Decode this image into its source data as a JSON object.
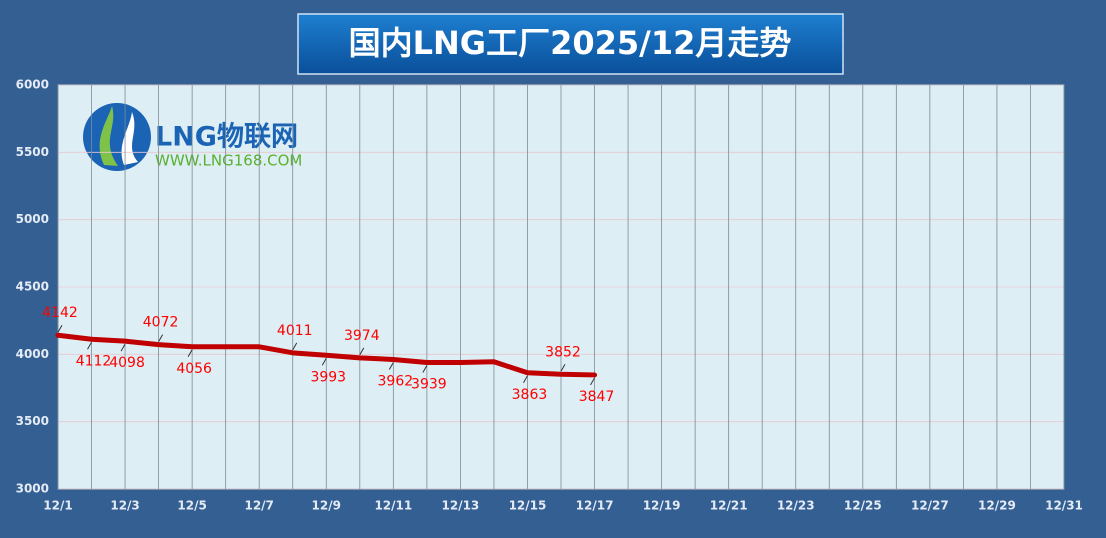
{
  "chart_data": {
    "type": "line",
    "title": "国内LNG工厂2025/12月走势",
    "logo": {
      "name": "LNG物联网",
      "url": "WWW.LNG168.COM"
    },
    "categories": [
      "12/1",
      null,
      "12/3",
      null,
      "12/5",
      null,
      "12/7",
      null,
      "12/9",
      null,
      "12/11",
      null,
      "12/13",
      null,
      "12/15",
      null,
      "12/17",
      null,
      "12/19",
      null,
      "12/21",
      null,
      "12/23",
      null,
      "12/25",
      null,
      "12/27",
      null,
      "12/29",
      null,
      "12/31"
    ],
    "series": [
      {
        "name": "LNG",
        "color": "#c00000",
        "values": [
          4142,
          4112,
          4098,
          4072,
          4056,
          4056,
          4056,
          4011,
          3993,
          3974,
          3962,
          3939,
          3939,
          3945,
          3863,
          3852,
          3847,
          null,
          null,
          null,
          null,
          null,
          null,
          null,
          null,
          null,
          null,
          null,
          null,
          null,
          null
        ],
        "value_labels": [
          "4142",
          "4112",
          "4098",
          "4072",
          "4056",
          null,
          null,
          "4011",
          "3993",
          "3974",
          "3962",
          "3939",
          null,
          null,
          "3863",
          "3852",
          "3847",
          null,
          null,
          null,
          null,
          null,
          null,
          null,
          null,
          null,
          null,
          null,
          null,
          null,
          null
        ]
      }
    ],
    "ylim": [
      3000,
      6000
    ],
    "yticks": [
      3000,
      3500,
      4000,
      4500,
      5000,
      5500,
      6000
    ],
    "grid": true
  }
}
